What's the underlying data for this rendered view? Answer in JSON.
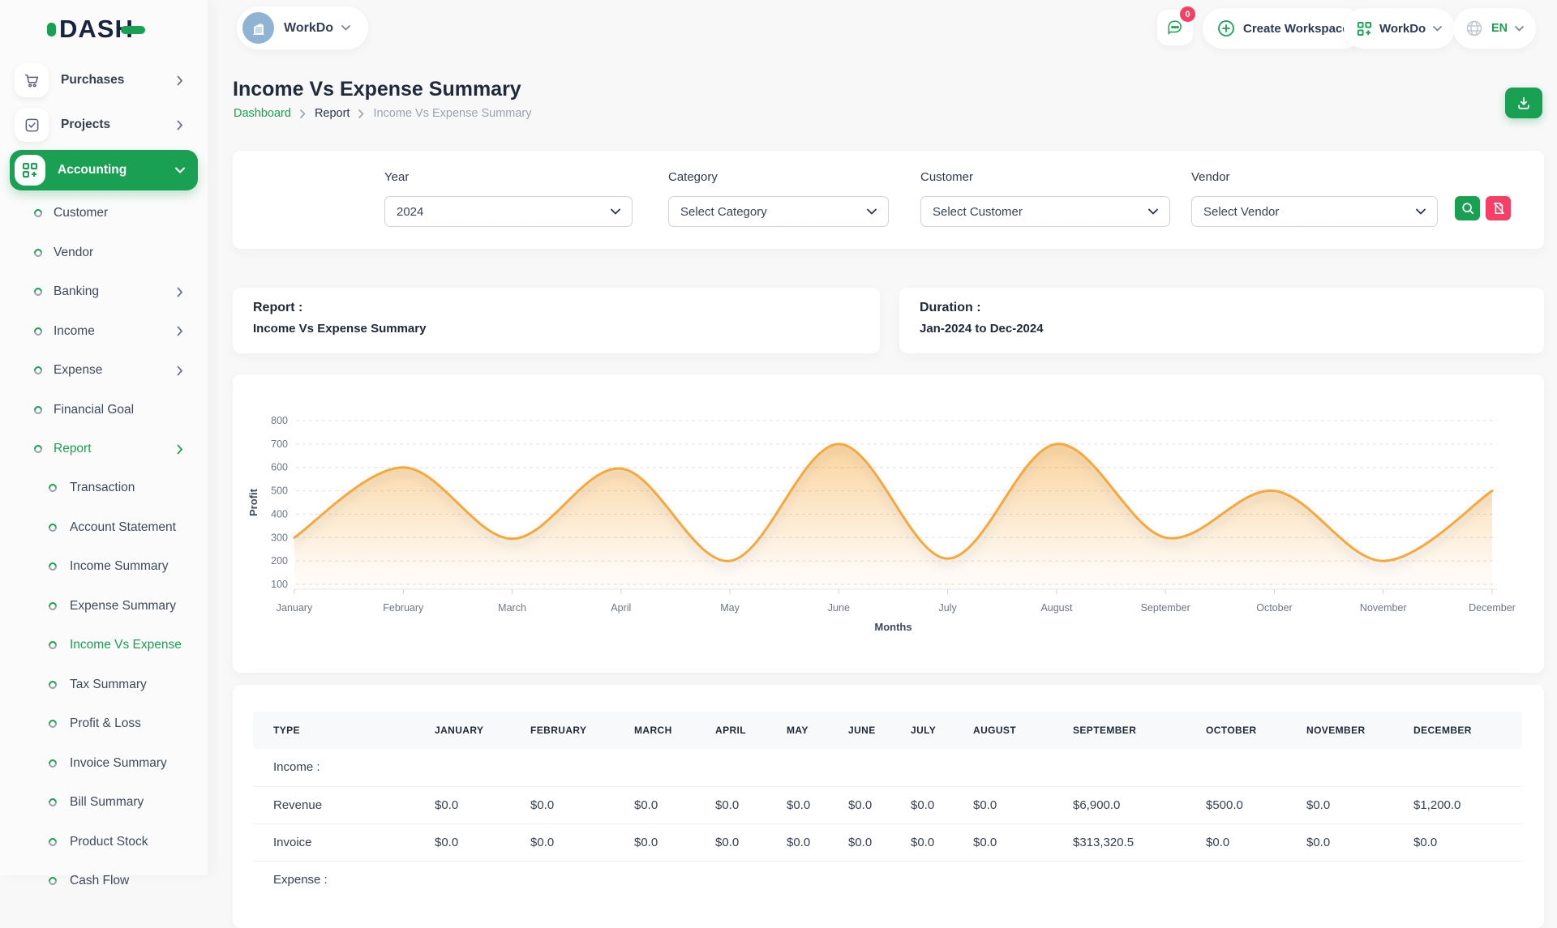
{
  "brand": {
    "name": "DASH"
  },
  "topbar": {
    "workspace_chip_label": "WorkDo",
    "messages_badge": "0",
    "create_workspace_label": "Create Workspace",
    "workspace_menu_label": "WorkDo",
    "language_label": "EN"
  },
  "page": {
    "title": "Income Vs Expense Summary",
    "breadcrumb": [
      "Dashboard",
      "Report",
      "Income Vs Expense Summary"
    ]
  },
  "filters": {
    "year": {
      "label": "Year",
      "value": "2024"
    },
    "category": {
      "label": "Category",
      "value": "Select Category"
    },
    "customer": {
      "label": "Customer",
      "value": "Select Customer"
    },
    "vendor": {
      "label": "Vendor",
      "value": "Select Vendor"
    }
  },
  "summary_cards": {
    "report_label": "Report :",
    "report_value": "Income Vs Expense Summary",
    "duration_label": "Duration :",
    "duration_value": "Jan-2024 to Dec-2024"
  },
  "chart_data": {
    "type": "area",
    "x": [
      "January",
      "February",
      "March",
      "April",
      "May",
      "June",
      "July",
      "August",
      "September",
      "October",
      "November",
      "December"
    ],
    "series": [
      {
        "name": "Profit",
        "values": [
          300,
          600,
          295,
          595,
          200,
          700,
          210,
          700,
          300,
          500,
          200,
          500
        ]
      }
    ],
    "title": "",
    "xlabel": "Months",
    "ylabel": "Profit",
    "ylim": [
      100,
      800
    ],
    "ytick_step": 100,
    "grid": true,
    "legend": "none",
    "line_color": "#f6a83b",
    "fill": "gradient"
  },
  "table": {
    "headers": [
      "TYPE",
      "JANUARY",
      "FEBRUARY",
      "MARCH",
      "APRIL",
      "MAY",
      "JUNE",
      "JULY",
      "AUGUST",
      "SEPTEMBER",
      "OCTOBER",
      "NOVEMBER",
      "DECEMBER"
    ],
    "sections": [
      {
        "label": "Income :",
        "rows": [
          {
            "type": "Revenue",
            "values": [
              "$0.0",
              "$0.0",
              "$0.0",
              "$0.0",
              "$0.0",
              "$0.0",
              "$0.0",
              "$0.0",
              "$6,900.0",
              "$500.0",
              "$0.0",
              "$1,200.0"
            ]
          },
          {
            "type": "Invoice",
            "values": [
              "$0.0",
              "$0.0",
              "$0.0",
              "$0.0",
              "$0.0",
              "$0.0",
              "$0.0",
              "$0.0",
              "$313,320.5",
              "$0.0",
              "$0.0",
              "$0.0"
            ]
          }
        ]
      },
      {
        "label": "Expense :",
        "rows": []
      }
    ]
  },
  "sidebar": {
    "main_items": [
      {
        "label": "Purchases",
        "icon": "cart-icon",
        "chevron": true
      },
      {
        "label": "Projects",
        "icon": "check-square-icon",
        "chevron": true
      }
    ],
    "active_item": {
      "label": "Accounting",
      "icon": "grid-plus-icon"
    },
    "accounting_children": [
      {
        "label": "Customer"
      },
      {
        "label": "Vendor"
      },
      {
        "label": "Banking",
        "chevron": true
      },
      {
        "label": "Income",
        "chevron": true
      },
      {
        "label": "Expense",
        "chevron": true
      },
      {
        "label": "Financial Goal"
      },
      {
        "label": "Report",
        "chevron": true,
        "active": true
      }
    ],
    "report_children": [
      {
        "label": "Transaction"
      },
      {
        "label": "Account Statement"
      },
      {
        "label": "Income Summary"
      },
      {
        "label": "Expense Summary"
      },
      {
        "label": "Income Vs Expense",
        "active": true
      },
      {
        "label": "Tax Summary"
      },
      {
        "label": "Profit & Loss"
      },
      {
        "label": "Invoice Summary"
      },
      {
        "label": "Bill Summary"
      },
      {
        "label": "Product Stock"
      },
      {
        "label": "Cash Flow"
      }
    ]
  },
  "colors": {
    "primary_green": "#1aa053",
    "accent_pink": "#f73e64",
    "chart_line": "#f6a83b"
  }
}
